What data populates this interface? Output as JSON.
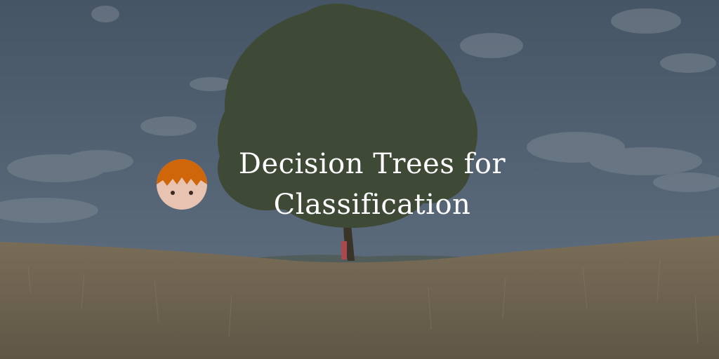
{
  "title": {
    "line1": "Decision Trees for",
    "line2": "Classification"
  },
  "icons": {
    "avatar": "kid-avatar-icon"
  },
  "colors": {
    "sky": "#4d5d6e",
    "grass": "#6f6450",
    "tree": "#3e4a36",
    "hair": "#d0660a",
    "face": "#e8c3b2",
    "text": "#ffffff"
  }
}
